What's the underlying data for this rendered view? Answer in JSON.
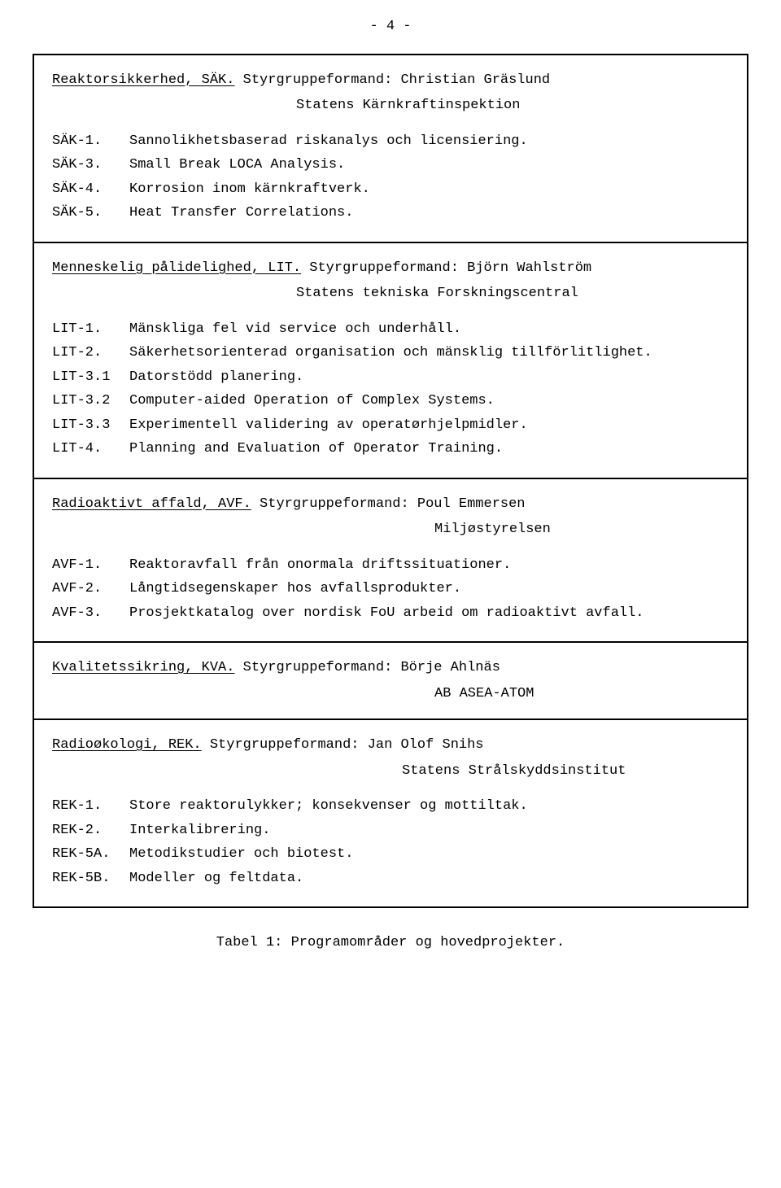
{
  "page_number_label": "- 4 -",
  "sections": [
    {
      "title_underlined": "Reaktorsikkerhed, SÄK.",
      "title_rest": " Styrgruppeformand: Christian Gräslund",
      "subtitle": "Statens Kärnkraftinspektion",
      "subtitle_indent_class": "sub-indent",
      "items": [
        {
          "code": "SÄK-1.",
          "text": "Sannolikhetsbaserad riskanalys och licensiering."
        },
        {
          "code": "SÄK-3.",
          "text": "Small Break LOCA Analysis."
        },
        {
          "code": "SÄK-4.",
          "text": "Korrosion inom kärnkraftverk."
        },
        {
          "code": "SÄK-5.",
          "text": "Heat Transfer Correlations."
        }
      ]
    },
    {
      "title_underlined": "Menneskelig pålidelighed, LIT.",
      "title_rest": " Styrgruppeformand: Björn Wahlström",
      "subtitle": "Statens tekniska Forskningscentral",
      "subtitle_indent_class": "sub-indent",
      "items": [
        {
          "code": "LIT-1.",
          "text": "Mänskliga fel vid service och underhåll."
        },
        {
          "code": "LIT-2.",
          "text": "Säkerhetsorienterad organisation och mänsklig tillförlitlighet."
        },
        {
          "code": "LIT-3.1",
          "text": "Datorstödd planering."
        },
        {
          "code": "LIT-3.2",
          "text": "Computer-aided Operation of Complex Systems."
        },
        {
          "code": "LIT-3.3",
          "text": "Experimentell validering av operatørhjelpmidler."
        },
        {
          "code": "LIT-4.",
          "text": "Planning and Evaluation of Operator Training."
        }
      ]
    },
    {
      "title_underlined": "Radioaktivt affald, AVF.",
      "title_rest": " Styrgruppeformand: Poul Emmersen",
      "subtitle": "Miljøstyrelsen",
      "subtitle_indent_class": "sub-indent-right",
      "items": [
        {
          "code": "AVF-1.",
          "text": "Reaktoravfall från onormala driftssituationer."
        },
        {
          "code": "AVF-2.",
          "text": "Långtidsegenskaper hos avfallsprodukter."
        },
        {
          "code": "AVF-3.",
          "text": "Prosjektkatalog over nordisk FoU arbeid om radioaktivt avfall."
        }
      ]
    },
    {
      "title_underlined": "Kvalitetssikring, KVA.",
      "title_rest": " Styrgruppeformand: Börje Ahlnäs",
      "subtitle": "AB ASEA-ATOM",
      "subtitle_indent_class": "sub-indent-right",
      "items": []
    },
    {
      "title_underlined": "Radioøkologi, REK.",
      "title_rest": " Styrgruppeformand: Jan Olof Snihs",
      "subtitle": "Statens Strålskyddsinstitut",
      "subtitle_indent_class": "sub-indent-mid",
      "items": [
        {
          "code": "REK-1.",
          "text": "Store reaktorulykker; konsekvenser og mottiltak."
        },
        {
          "code": "REK-2.",
          "text": "Interkalibrering."
        },
        {
          "code": "REK-5A.",
          "text": "Metodikstudier och biotest."
        },
        {
          "code": "REK-5B.",
          "text": "Modeller og feltdata."
        }
      ]
    }
  ],
  "caption": "Tabel 1: Programområder og hovedprojekter."
}
